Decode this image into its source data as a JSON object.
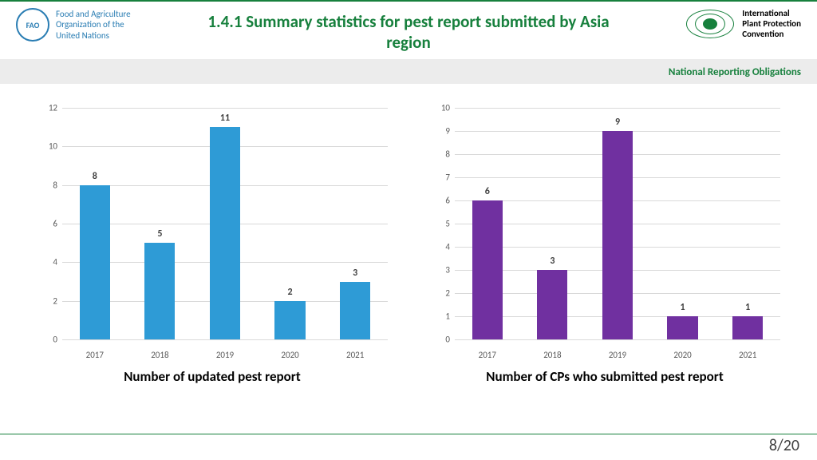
{
  "header": {
    "fao_lines": [
      "Food and Agriculture",
      "Organization of the",
      "United Nations"
    ],
    "fao_short": "FAO",
    "title": "1.4.1 Summary statistics for pest report submitted by Asia region",
    "ippc_lines": [
      "International",
      "Plant Protection",
      "Convention"
    ],
    "subhead": "National Reporting Obligations"
  },
  "chart_left": {
    "type": "bar",
    "caption": "Number of updated pest report",
    "categories": [
      "2017",
      "2018",
      "2019",
      "2020",
      "2021"
    ],
    "values": [
      8,
      5,
      11,
      2,
      3
    ],
    "bar_color": "#2e9bd6",
    "ylim": [
      0,
      12
    ],
    "ytick_step": 2,
    "grid_color": "#d9d9d9",
    "label_fontsize": 12
  },
  "chart_right": {
    "type": "bar",
    "caption": "Number of CPs who submitted pest report",
    "categories": [
      "2017",
      "2018",
      "2019",
      "2020",
      "2021"
    ],
    "values": [
      6,
      3,
      9,
      1,
      1
    ],
    "bar_color": "#7030a0",
    "ylim": [
      0,
      10
    ],
    "ytick_step": 1,
    "grid_color": "#d9d9d9",
    "label_fontsize": 12
  },
  "page": {
    "current": 8,
    "total": 20
  }
}
